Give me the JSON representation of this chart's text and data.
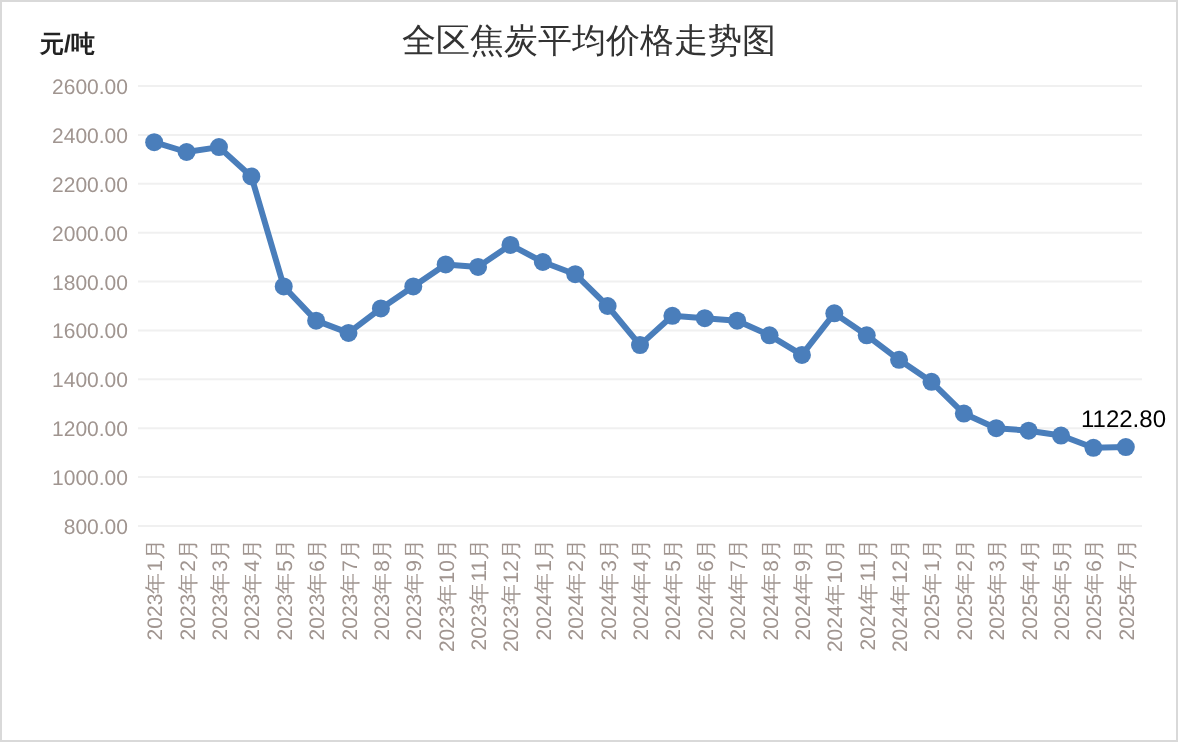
{
  "chart_data": {
    "type": "line",
    "title": "全区焦炭平均价格走势图",
    "ylabel": "元/吨",
    "categories": [
      "2023年1月",
      "2023年2月",
      "2023年3月",
      "2023年4月",
      "2023年5月",
      "2023年6月",
      "2023年7月",
      "2023年8月",
      "2023年9月",
      "2023年10月",
      "2023年11月",
      "2023年12月",
      "2024年1月",
      "2024年2月",
      "2024年3月",
      "2024年4月",
      "2024年5月",
      "2024年6月",
      "2024年7月",
      "2024年8月",
      "2024年9月",
      "2024年10月",
      "2024年11月",
      "2024年12月",
      "2025年1月",
      "2025年2月",
      "2025年3月",
      "2025年4月",
      "2025年5月",
      "2025年6月",
      "2025年7月"
    ],
    "series": [
      {
        "color": "#4a7ebb",
        "values": [
          2370,
          2330,
          2350,
          2230,
          1780,
          1640,
          1590,
          1690,
          1780,
          1870,
          1860,
          1950,
          1880,
          1830,
          1700,
          1540,
          1660,
          1650,
          1640,
          1580,
          1500,
          1670,
          1580,
          1480,
          1390,
          1260,
          1200,
          1190,
          1170,
          1120,
          1122.8
        ],
        "value_labels": [
          null,
          null,
          null,
          null,
          null,
          null,
          null,
          null,
          null,
          null,
          null,
          null,
          null,
          null,
          null,
          null,
          null,
          null,
          null,
          null,
          null,
          null,
          null,
          null,
          null,
          null,
          null,
          null,
          null,
          null,
          "1122.80"
        ]
      }
    ],
    "ylim": [
      800,
      2600
    ],
    "yticks": [
      {
        "value": 800,
        "label": "800.00"
      },
      {
        "value": 1000,
        "label": "1000.00"
      },
      {
        "value": 1200,
        "label": "1200.00"
      },
      {
        "value": 1400,
        "label": "1400.00"
      },
      {
        "value": 1600,
        "label": "1600.00"
      },
      {
        "value": 1800,
        "label": "1800.00"
      },
      {
        "value": 2000,
        "label": "2000.00"
      },
      {
        "value": 2200,
        "label": "2200.00"
      },
      {
        "value": 2400,
        "label": "2400.00"
      },
      {
        "value": 2600,
        "label": "2600.00"
      }
    ],
    "grid": "y",
    "marker": "circle",
    "line_style": "solid"
  }
}
